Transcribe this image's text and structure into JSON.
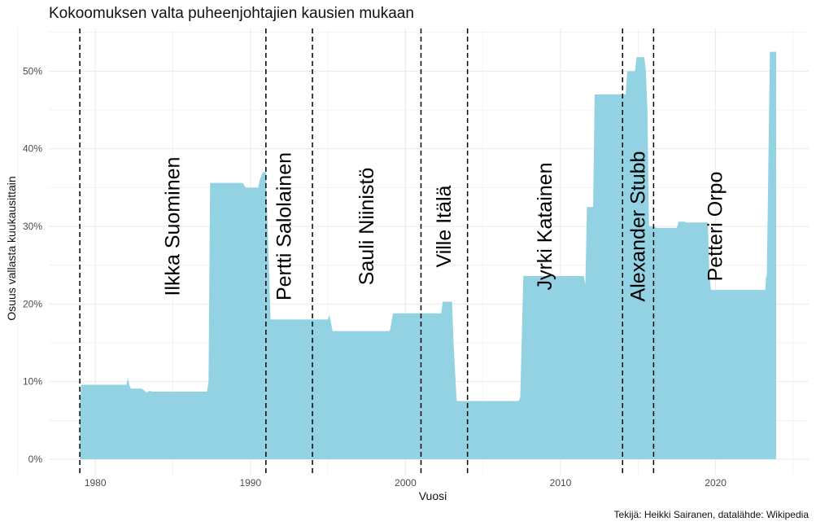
{
  "chart_data": {
    "type": "area",
    "title": "Kokoomuksen valta puheenjohtajien kausien mukaan",
    "xlabel": "Vuosi",
    "ylabel": "Osuus vallasta kuukausittain",
    "caption": "Tekijä: Heikki Sairanen, datalähde: Wikipedia",
    "xlim": [
      1977,
      2026
    ],
    "ylim": [
      -0.02,
      0.555
    ],
    "x_ticks": [
      1980,
      1990,
      2000,
      2010,
      2020
    ],
    "x_tick_labels": [
      "1980",
      "1990",
      "2000",
      "2010",
      "2020"
    ],
    "y_ticks": [
      0,
      0.1,
      0.2,
      0.3,
      0.4,
      0.5
    ],
    "y_tick_labels": [
      "0%",
      "10%",
      "20%",
      "30%",
      "40%",
      "50%"
    ],
    "grid": true,
    "fill_color": "#93d2e2",
    "leader_changes": [
      1979.0,
      1991.0,
      1994.0,
      2001.0,
      2004.0,
      2014.0,
      2016.0
    ],
    "leaders": [
      {
        "name": "Ilkka Suominen",
        "x": 1985.0,
        "y": 0.3
      },
      {
        "name": "Pertti Salolainen",
        "x": 1992.2,
        "y": 0.3
      },
      {
        "name": "Sauli Niinistö",
        "x": 1997.5,
        "y": 0.3
      },
      {
        "name": "Ville Itälä",
        "x": 2002.5,
        "y": 0.3
      },
      {
        "name": "Jyrki Katainen",
        "x": 2009.0,
        "y": 0.3
      },
      {
        "name": "Alexander Stubb",
        "x": 2015.0,
        "y": 0.3
      },
      {
        "name": "Petteri Orpo",
        "x": 2020.0,
        "y": 0.3
      }
    ],
    "x": [
      1979.0,
      1979.1,
      1979.3,
      1982.0,
      1982.1,
      1982.2,
      1982.3,
      1983.0,
      1983.3,
      1983.5,
      1983.7,
      1984.0,
      1987.2,
      1987.3,
      1987.4,
      1989.5,
      1989.7,
      1990.5,
      1990.6,
      1990.8,
      1991.0,
      1991.3,
      1991.4,
      1991.5,
      1995.0,
      1995.1,
      1995.3,
      1998.9,
      1999.0,
      1999.2,
      2002.3,
      2002.4,
      2003.0,
      2003.1,
      2003.3,
      2007.3,
      2007.4,
      2007.6,
      2011.5,
      2011.6,
      2011.7,
      2012.1,
      2012.2,
      2012.3,
      2014.2,
      2014.3,
      2014.8,
      2014.9,
      2015.4,
      2015.5,
      2015.6,
      2015.7,
      2016.0,
      2016.2,
      2017.5,
      2017.6,
      2018.0,
      2018.1,
      2019.5,
      2019.6,
      2019.7,
      2023.2,
      2023.25,
      2023.3,
      2023.5,
      2023.9
    ],
    "y": [
      0.073,
      0.096,
      0.096,
      0.096,
      0.105,
      0.095,
      0.091,
      0.091,
      0.086,
      0.088,
      0.087,
      0.087,
      0.087,
      0.1,
      0.356,
      0.356,
      0.35,
      0.35,
      0.36,
      0.37,
      0.37,
      0.18,
      0.18,
      0.18,
      0.18,
      0.186,
      0.165,
      0.165,
      0.166,
      0.188,
      0.188,
      0.203,
      0.203,
      0.15,
      0.075,
      0.075,
      0.08,
      0.236,
      0.236,
      0.225,
      0.325,
      0.325,
      0.47,
      0.47,
      0.47,
      0.5,
      0.5,
      0.518,
      0.518,
      0.5,
      0.45,
      0.3,
      0.3,
      0.298,
      0.298,
      0.306,
      0.306,
      0.305,
      0.305,
      0.24,
      0.218,
      0.218,
      0.235,
      0.236,
      0.525,
      0.525
    ]
  }
}
